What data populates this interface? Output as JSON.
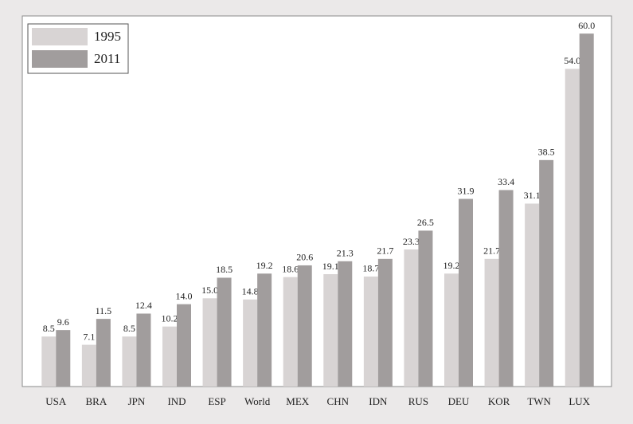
{
  "chart_data": {
    "type": "bar",
    "categories": [
      "USA",
      "BRA",
      "JPN",
      "IND",
      "ESP",
      "World",
      "MEX",
      "CHN",
      "IDN",
      "RUS",
      "DEU",
      "KOR",
      "TWN",
      "LUX"
    ],
    "series": [
      {
        "name": "1995",
        "color": "#d8d4d4",
        "values": [
          8.5,
          7.1,
          8.5,
          10.2,
          15.0,
          14.8,
          18.6,
          19.1,
          18.7,
          23.3,
          19.2,
          21.7,
          31.1,
          54.0
        ],
        "value_labels": [
          "8.5",
          "7.1",
          "8.5",
          "10.2",
          "15.0",
          "14.8",
          "18.6",
          "19.1",
          "18.7",
          "23.3",
          "19.2",
          "21.7",
          "31.1",
          "54.0"
        ]
      },
      {
        "name": "2011",
        "color": "#a19d9d",
        "values": [
          9.6,
          11.5,
          12.4,
          14.0,
          18.5,
          19.2,
          20.6,
          21.3,
          21.7,
          26.5,
          31.9,
          33.4,
          38.5,
          60.0
        ],
        "value_labels": [
          "9.6",
          "11.5",
          "12.4",
          "14.0",
          "18.5",
          "19.2",
          "20.6",
          "21.3",
          "21.7",
          "26.5",
          "31.9",
          "33.4",
          "38.5",
          "60.0"
        ]
      }
    ],
    "ylim": [
      0,
      63
    ],
    "legend": "upper left"
  }
}
